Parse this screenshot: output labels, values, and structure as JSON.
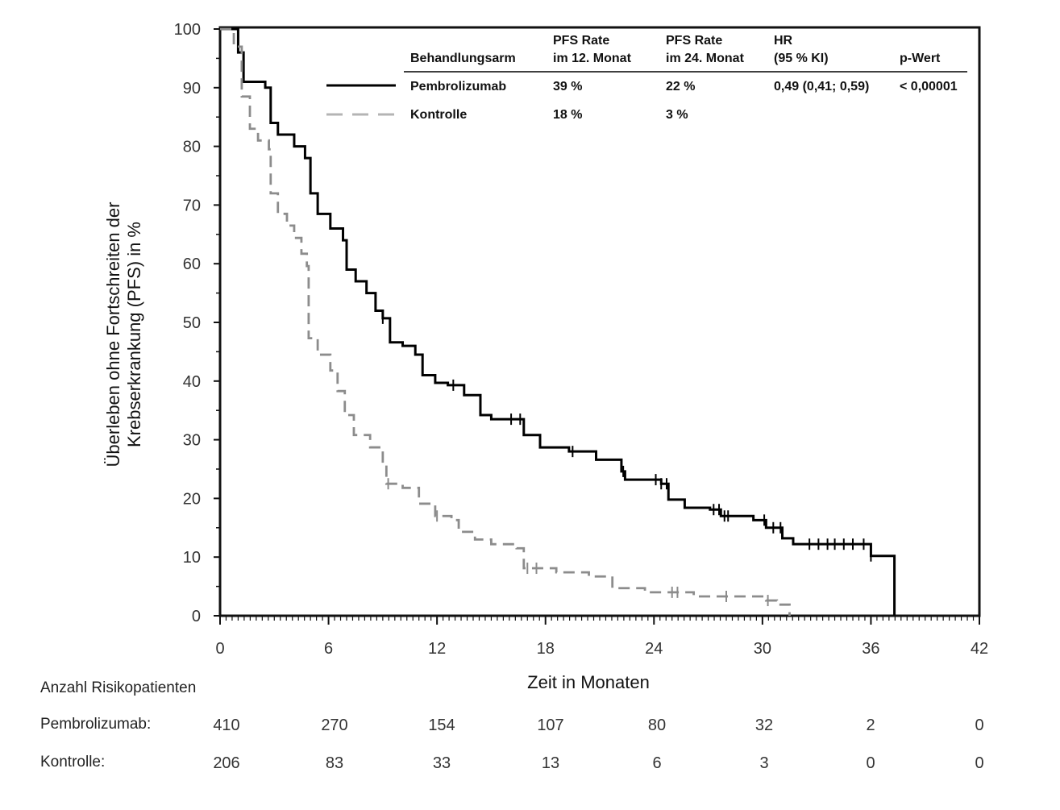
{
  "chart_data": {
    "type": "line",
    "subtype": "kaplan-meier step",
    "xlabel": "Zeit in Monaten",
    "ylabel_lines": [
      "Überleben ohne Fortschreiten der",
      "Krebserkrankung (PFS) in %"
    ],
    "xlim": [
      0,
      42
    ],
    "ylim": [
      0,
      100
    ],
    "x_ticks": [
      "0",
      "6",
      "12",
      "18",
      "24",
      "30",
      "36",
      "42"
    ],
    "y_ticks": [
      "0",
      "10",
      "20",
      "30",
      "40",
      "50",
      "60",
      "70",
      "80",
      "90",
      "100"
    ],
    "grid": false,
    "legend_table": {
      "headers": [
        "Behandlungsarm",
        "PFS Rate\nim 12. Monat",
        "PFS Rate\nim 24. Monat",
        "HR\n(95 % KI)",
        "p-Wert"
      ],
      "header_line1": [
        "",
        "PFS Rate",
        "PFS Rate",
        "HR",
        ""
      ],
      "header_line2": [
        "Behandlungsarm",
        "im 12. Monat",
        "im 24. Monat",
        "(95 % KI)",
        "p-Wert"
      ],
      "rows": [
        [
          "Pembrolizumab",
          "39 %",
          "22 %",
          "0,49 (0,41; 0,59)",
          "< 0,00001"
        ],
        [
          "Kontrolle",
          "18 %",
          "3 %",
          "",
          ""
        ]
      ],
      "placement": "top-right"
    },
    "series": [
      {
        "name": "Pembrolizumab",
        "color": "#000000",
        "style": "solid",
        "steps": [
          [
            1.0,
            96
          ],
          [
            1.3,
            91
          ],
          [
            2.5,
            90
          ],
          [
            2.8,
            84
          ],
          [
            3.2,
            82
          ],
          [
            4.1,
            80
          ],
          [
            4.7,
            78
          ],
          [
            5.0,
            72
          ],
          [
            5.4,
            68.5
          ],
          [
            6.1,
            66
          ],
          [
            6.8,
            64
          ],
          [
            7.0,
            59
          ],
          [
            7.5,
            57
          ],
          [
            8.1,
            55
          ],
          [
            8.6,
            52
          ],
          [
            9.0,
            50.7
          ],
          [
            9.4,
            46.6
          ],
          [
            10.1,
            46
          ],
          [
            10.8,
            44.5
          ],
          [
            11.2,
            41
          ],
          [
            11.9,
            39.7
          ],
          [
            12.6,
            39.3
          ],
          [
            13.5,
            37.6
          ],
          [
            14.4,
            34.2
          ],
          [
            15.0,
            33.5
          ],
          [
            16.8,
            30.8
          ],
          [
            17.7,
            28.7
          ],
          [
            19.3,
            28
          ],
          [
            20.8,
            26.6
          ],
          [
            22.2,
            24.6
          ],
          [
            22.4,
            23.2
          ],
          [
            24.4,
            22.5
          ],
          [
            24.8,
            19.8
          ],
          [
            25.7,
            18.4
          ],
          [
            27.1,
            18.1
          ],
          [
            27.7,
            17
          ],
          [
            29.5,
            16.3
          ],
          [
            30.2,
            15
          ],
          [
            31.1,
            13.2
          ],
          [
            31.7,
            12.2
          ],
          [
            36.0,
            10.2
          ],
          [
            37.3,
            0
          ]
        ],
        "censored": [
          9.0,
          12.9,
          16.1,
          16.6,
          19.5,
          22.3,
          24.1,
          24.4,
          24.7,
          27.3,
          27.6,
          27.9,
          28.1,
          30.1,
          30.6,
          31.0,
          32.6,
          33.1,
          33.6,
          34.0,
          34.5,
          35.0,
          35.6,
          36.0
        ]
      },
      {
        "name": "Kontrolle",
        "color": "#8c8c8c",
        "style": "dashed",
        "steps": [
          [
            0.76,
            97
          ],
          [
            1.2,
            88.5
          ],
          [
            1.65,
            83
          ],
          [
            2.1,
            81
          ],
          [
            2.7,
            79.5
          ],
          [
            2.8,
            72
          ],
          [
            3.2,
            68.5
          ],
          [
            3.7,
            66.5
          ],
          [
            4.1,
            64.4
          ],
          [
            4.5,
            61.7
          ],
          [
            4.8,
            59.6
          ],
          [
            4.9,
            47.3
          ],
          [
            5.4,
            44.5
          ],
          [
            6.1,
            41.8
          ],
          [
            6.5,
            38.3
          ],
          [
            6.9,
            34.2
          ],
          [
            7.4,
            30.8
          ],
          [
            8.3,
            28.7
          ],
          [
            9.0,
            26
          ],
          [
            9.2,
            22.5
          ],
          [
            10.1,
            21.8
          ],
          [
            11.0,
            19.1
          ],
          [
            11.9,
            17
          ],
          [
            12.8,
            16.3
          ],
          [
            13.2,
            14.3
          ],
          [
            14.1,
            13
          ],
          [
            15.0,
            12.2
          ],
          [
            16.4,
            11.5
          ],
          [
            16.8,
            8.1
          ],
          [
            18.6,
            7.4
          ],
          [
            20.4,
            6.7
          ],
          [
            21.7,
            4.7
          ],
          [
            23.5,
            4.0
          ],
          [
            26.2,
            3.3
          ],
          [
            30.2,
            2.6
          ],
          [
            30.8,
            1.9
          ],
          [
            31.5,
            0
          ]
        ],
        "censored": [
          9.3,
          12.0,
          17.0,
          17.5,
          25.0,
          25.3,
          28.0,
          30.3
        ]
      }
    ],
    "risk_table": {
      "title": "Anzahl Risikopatienten",
      "rows": [
        {
          "label": "Pembrolizumab:",
          "values": [
            "410",
            "270",
            "154",
            "107",
            "80",
            "32",
            "2",
            "0"
          ]
        },
        {
          "label": "Kontrolle:",
          "values": [
            "206",
            "83",
            "33",
            "13",
            "6",
            "3",
            "0",
            "0"
          ]
        }
      ]
    }
  }
}
